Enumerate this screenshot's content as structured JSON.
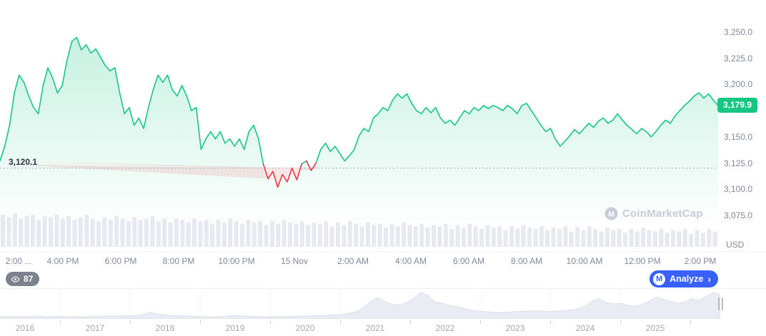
{
  "colors": {
    "green": "#16c784",
    "red": "#ea3943",
    "blue": "#3861fb",
    "axis_text": "#808a9d",
    "volume_bar": "#e6eaf0",
    "nav_fill": "#e9edf3",
    "nav_stroke": "#dbe1ea",
    "watermark": "#c6cdd9",
    "dotted_line": "#9fa9bb"
  },
  "chart": {
    "open_label": "3,120.1",
    "open_price": 3120.1,
    "current_price_label": "3,179.9",
    "current_price": 3179.9,
    "unit_label": "USD"
  },
  "toolbar": {
    "watchers": "87",
    "analyze_label": "Analyze",
    "analyze_chevron": "›",
    "logo_letter": "M"
  },
  "watermark": {
    "text": "CoinMarketCap",
    "logo_letter": "M"
  },
  "chart_data": {
    "type": "area",
    "title": "",
    "xlabel": "",
    "ylabel": "USD",
    "ylim": [
      3075,
      3250
    ],
    "baseline": 3120.1,
    "grid": false,
    "legend": "none",
    "y_ticks": [
      {
        "value": 3250,
        "label": "3,250.0"
      },
      {
        "value": 3225,
        "label": "3,225.0"
      },
      {
        "value": 3200,
        "label": "3,200.0"
      },
      {
        "value": 3150,
        "label": "3,150.0"
      },
      {
        "value": 3125,
        "label": "3,125.0"
      },
      {
        "value": 3100,
        "label": "3,100.0"
      },
      {
        "value": 3075,
        "label": "3,075.0"
      }
    ],
    "x_ticks": [
      "2:00 ...",
      "4:00 PM",
      "6:00 PM",
      "8:00 PM",
      "10:00 PM",
      "15 Nov",
      "2:00 AM",
      "4:00 AM",
      "6:00 AM",
      "8:00 AM",
      "10:00 AM",
      "12:00 PM",
      "2:00 PM"
    ],
    "series": [
      {
        "name": "price",
        "values": [
          3127,
          3141,
          3161,
          3192,
          3209,
          3202,
          3189,
          3178,
          3172,
          3199,
          3216,
          3206,
          3192,
          3199,
          3223,
          3241,
          3245,
          3233,
          3238,
          3230,
          3234,
          3226,
          3218,
          3213,
          3216,
          3192,
          3172,
          3178,
          3161,
          3168,
          3158,
          3178,
          3195,
          3209,
          3202,
          3209,
          3195,
          3189,
          3199,
          3189,
          3175,
          3178,
          3138,
          3148,
          3155,
          3148,
          3155,
          3144,
          3148,
          3141,
          3148,
          3138,
          3155,
          3161,
          3148,
          3124,
          3110,
          3117,
          3102,
          3114,
          3107,
          3120,
          3109,
          3124,
          3127,
          3118,
          3125,
          3138,
          3144,
          3136,
          3141,
          3134,
          3127,
          3132,
          3138,
          3151,
          3158,
          3155,
          3168,
          3172,
          3178,
          3175,
          3185,
          3191,
          3187,
          3191,
          3182,
          3175,
          3172,
          3178,
          3173,
          3178,
          3168,
          3163,
          3166,
          3161,
          3168,
          3175,
          3172,
          3178,
          3175,
          3180,
          3177,
          3180,
          3178,
          3175,
          3180,
          3177,
          3172,
          3180,
          3182,
          3175,
          3168,
          3161,
          3155,
          3158,
          3148,
          3141,
          3146,
          3151,
          3157,
          3153,
          3158,
          3163,
          3159,
          3165,
          3168,
          3163,
          3166,
          3172,
          3166,
          3161,
          3157,
          3153,
          3158,
          3155,
          3150,
          3155,
          3161,
          3166,
          3163,
          3170,
          3175,
          3180,
          3184,
          3189,
          3192,
          3187,
          3191,
          3185,
          3180
        ]
      }
    ],
    "volume": [
      25,
      23,
      26,
      22,
      24,
      25,
      21,
      24,
      23,
      25,
      22,
      24,
      21,
      23,
      25,
      22,
      20,
      23,
      21,
      24,
      22,
      20,
      23,
      21,
      22,
      24,
      20,
      22,
      19,
      22,
      21,
      19,
      22,
      20,
      21,
      18,
      21,
      19,
      22,
      20,
      18,
      21,
      19,
      20,
      17,
      20,
      18,
      21,
      19,
      18,
      20,
      17,
      19,
      18,
      20,
      16,
      19,
      17,
      20,
      18,
      16,
      19,
      17,
      18,
      15,
      18,
      16,
      19,
      17,
      16,
      18,
      15,
      17,
      16,
      18,
      14,
      17,
      15,
      18,
      16,
      14,
      17,
      15,
      16,
      13,
      16,
      14,
      17,
      15,
      14,
      16,
      13,
      15,
      14,
      16,
      12,
      15,
      13,
      16,
      14,
      12,
      15,
      13,
      14,
      11,
      14,
      12,
      15,
      13,
      12,
      14,
      11,
      13,
      12,
      14,
      10,
      13,
      11,
      14,
      12
    ],
    "navigator": {
      "years": [
        "2016",
        "2017",
        "2018",
        "2019",
        "2020",
        "2021",
        "2022",
        "2023",
        "2024",
        "2025"
      ],
      "values": [
        0.06,
        0.05,
        0.07,
        0.05,
        0.06,
        0.08,
        0.06,
        0.05,
        0.07,
        0.06,
        0.05,
        0.06,
        0.05,
        0.07,
        0.06,
        0.08,
        0.07,
        0.09,
        0.08,
        0.1,
        0.12,
        0.22,
        0.16,
        0.12,
        0.1,
        0.09,
        0.08,
        0.07,
        0.06,
        0.05,
        0.05,
        0.06,
        0.08,
        0.1,
        0.08,
        0.07,
        0.06,
        0.05,
        0.05,
        0.06,
        0.06,
        0.07,
        0.08,
        0.07,
        0.09,
        0.1,
        0.11,
        0.12,
        0.14,
        0.18,
        0.25,
        0.4,
        0.62,
        0.75,
        0.6,
        0.52,
        0.48,
        0.58,
        0.72,
        0.95,
        0.85,
        0.6,
        0.55,
        0.48,
        0.42,
        0.38,
        0.3,
        0.26,
        0.24,
        0.22,
        0.2,
        0.22,
        0.24,
        0.26,
        0.25,
        0.28,
        0.26,
        0.24,
        0.26,
        0.28,
        0.3,
        0.34,
        0.45,
        0.62,
        0.72,
        0.58,
        0.52,
        0.56,
        0.48,
        0.44,
        0.5,
        0.62,
        0.78,
        0.7,
        0.62,
        0.55,
        0.6,
        0.72,
        0.65,
        0.8,
        0.95,
        0.88
      ]
    }
  }
}
